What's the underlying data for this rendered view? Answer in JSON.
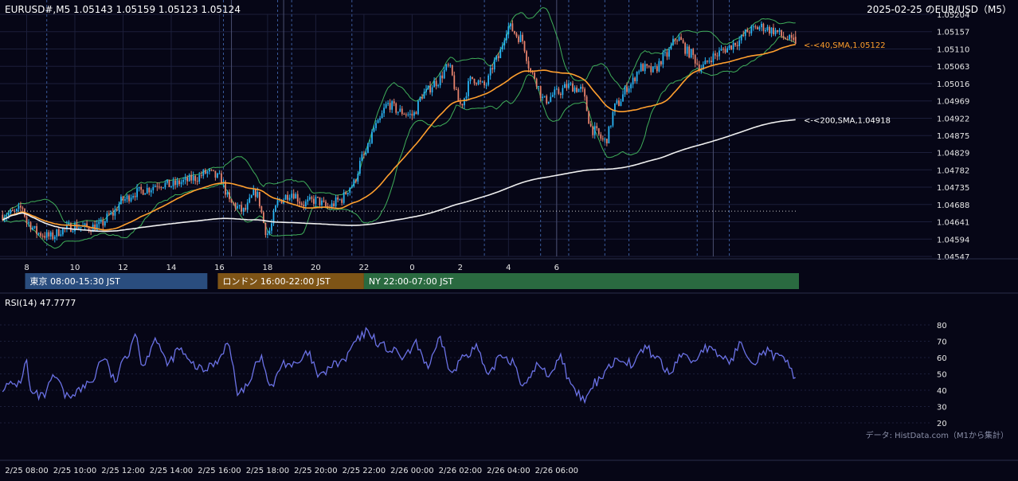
{
  "header": {
    "symbol_ohlc": "EURUSD#,M5 1.05143 1.05159 1.05123 1.05124",
    "date_title": "2025-02-25 のEUR/USD（M5）"
  },
  "footer": {
    "source": "データ: HistData.com（M1から集計）"
  },
  "colors": {
    "background": "#060616",
    "grid": "#1c1f3a",
    "bull_candle": "#29b6f6",
    "bear_candle": "#e8836d",
    "sma40": "#ff9f2e",
    "sma200": "#f0f0f0",
    "bollinger": "#3fae5a",
    "rsi_line": "#6b72e6",
    "tokyo_session": "#2a4d7e",
    "london_session": "#7e5416",
    "ny_session": "#2a6a40"
  },
  "chart_data": [
    {
      "type": "candlestick",
      "name": "price",
      "timeframe": "M5",
      "x_tick_labels": [
        "8",
        "10",
        "12",
        "14",
        "16",
        "18",
        "20",
        "22",
        "0",
        "2",
        "4",
        "6"
      ],
      "y_tick_labels": [
        "1.05204",
        "1.05157",
        "1.05110",
        "1.05063",
        "1.05016",
        "1.04969",
        "1.04922",
        "1.04875",
        "1.04829",
        "1.04782",
        "1.04735",
        "1.04688",
        "1.04641",
        "1.04594",
        "1.04547"
      ],
      "ylim": [
        1.04547,
        1.05204
      ],
      "anchors": [
        [
          0,
          1.0466
        ],
        [
          6,
          1.04665
        ],
        [
          10,
          1.0468
        ],
        [
          12,
          1.0464
        ],
        [
          18,
          1.0461
        ],
        [
          24,
          1.046
        ],
        [
          30,
          1.0462
        ],
        [
          36,
          1.0463
        ],
        [
          42,
          1.04625
        ],
        [
          48,
          1.0463
        ],
        [
          54,
          1.0466
        ],
        [
          60,
          1.047
        ],
        [
          66,
          1.0472
        ],
        [
          72,
          1.0473
        ],
        [
          78,
          1.04745
        ],
        [
          84,
          1.0474
        ],
        [
          90,
          1.0475
        ],
        [
          96,
          1.0476
        ],
        [
          102,
          1.04775
        ],
        [
          108,
          1.0476
        ],
        [
          114,
          1.0469
        ],
        [
          120,
          1.0467
        ],
        [
          126,
          1.0472
        ],
        [
          132,
          1.0461
        ],
        [
          138,
          1.047
        ],
        [
          144,
          1.0472
        ],
        [
          150,
          1.0469
        ],
        [
          156,
          1.047
        ],
        [
          162,
          1.0468
        ],
        [
          168,
          1.047
        ],
        [
          174,
          1.0474
        ],
        [
          180,
          1.0482
        ],
        [
          186,
          1.049
        ],
        [
          192,
          1.0496
        ],
        [
          198,
          1.0494
        ],
        [
          204,
          1.0493
        ],
        [
          210,
          1.0499
        ],
        [
          216,
          1.0502
        ],
        [
          222,
          1.0506
        ],
        [
          228,
          1.0496
        ],
        [
          234,
          1.0503
        ],
        [
          240,
          1.0501
        ],
        [
          246,
          1.0508
        ],
        [
          252,
          1.0517
        ],
        [
          258,
          1.0514
        ],
        [
          264,
          1.0504
        ],
        [
          270,
          1.0497
        ],
        [
          276,
          1.0499
        ],
        [
          282,
          1.0501
        ],
        [
          288,
          1.05
        ],
        [
          294,
          1.0489
        ],
        [
          300,
          1.0486
        ],
        [
          306,
          1.0496
        ],
        [
          312,
          1.0501
        ],
        [
          318,
          1.0506
        ],
        [
          324,
          1.0505
        ],
        [
          330,
          1.0509
        ],
        [
          336,
          1.0514
        ],
        [
          342,
          1.051
        ],
        [
          348,
          1.0506
        ],
        [
          354,
          1.0509
        ],
        [
          360,
          1.0511
        ],
        [
          366,
          1.0513
        ],
        [
          372,
          1.0516
        ],
        [
          378,
          1.0517
        ],
        [
          384,
          1.0516
        ],
        [
          390,
          1.0514
        ],
        [
          395,
          1.05124
        ]
      ],
      "candle_count": 396,
      "last": {
        "open": 1.05143,
        "high": 1.05159,
        "low": 1.05123,
        "close": 1.05124
      },
      "overlays": [
        {
          "name": "SMA 40",
          "label": "<-<40,SMA,1.05122",
          "value": 1.05122,
          "color": "#ff9f2e"
        },
        {
          "name": "SMA 200",
          "label": "<-<200,SMA,1.04918",
          "value": 1.04918,
          "color": "#f0f0f0"
        },
        {
          "name": "Bollinger Bands",
          "color": "#3fae5a"
        }
      ],
      "reference_line": 1.0467,
      "sessions": [
        {
          "name": "東京 08:00-15:30 JST",
          "color": "#2a4d7e"
        },
        {
          "name": "ロンドン 16:00-22:00 JST",
          "color": "#7e5416"
        },
        {
          "name": "NY 22:00-07:00 JST",
          "color": "#2a6a40"
        }
      ]
    },
    {
      "type": "line",
      "name": "RSI",
      "label": "RSI(14) 47.7777",
      "value": 47.7777,
      "y_tick_labels": [
        "80",
        "70",
        "60",
        "50",
        "40",
        "30",
        "20"
      ],
      "ylim": [
        20,
        80
      ],
      "anchors": [
        [
          0,
          42
        ],
        [
          8,
          44
        ],
        [
          12,
          57
        ],
        [
          14,
          38
        ],
        [
          20,
          36
        ],
        [
          26,
          48
        ],
        [
          32,
          36
        ],
        [
          38,
          40
        ],
        [
          44,
          45
        ],
        [
          50,
          60
        ],
        [
          56,
          46
        ],
        [
          62,
          62
        ],
        [
          66,
          75
        ],
        [
          70,
          55
        ],
        [
          76,
          72
        ],
        [
          82,
          56
        ],
        [
          88,
          65
        ],
        [
          94,
          56
        ],
        [
          100,
          52
        ],
        [
          106,
          57
        ],
        [
          112,
          68
        ],
        [
          118,
          37
        ],
        [
          122,
          45
        ],
        [
          128,
          60
        ],
        [
          134,
          42
        ],
        [
          140,
          57
        ],
        [
          146,
          55
        ],
        [
          152,
          62
        ],
        [
          158,
          48
        ],
        [
          164,
          55
        ],
        [
          170,
          58
        ],
        [
          176,
          70
        ],
        [
          182,
          76
        ],
        [
          188,
          68
        ],
        [
          194,
          64
        ],
        [
          200,
          60
        ],
        [
          206,
          68
        ],
        [
          212,
          55
        ],
        [
          218,
          70
        ],
        [
          224,
          50
        ],
        [
          230,
          62
        ],
        [
          236,
          66
        ],
        [
          242,
          48
        ],
        [
          248,
          62
        ],
        [
          254,
          58
        ],
        [
          260,
          42
        ],
        [
          266,
          55
        ],
        [
          272,
          50
        ],
        [
          278,
          60
        ],
        [
          284,
          40
        ],
        [
          290,
          34
        ],
        [
          296,
          45
        ],
        [
          302,
          55
        ],
        [
          308,
          60
        ],
        [
          314,
          56
        ],
        [
          320,
          66
        ],
        [
          326,
          60
        ],
        [
          332,
          50
        ],
        [
          338,
          62
        ],
        [
          344,
          58
        ],
        [
          350,
          66
        ],
        [
          356,
          62
        ],
        [
          362,
          58
        ],
        [
          368,
          68
        ],
        [
          374,
          58
        ],
        [
          380,
          64
        ],
        [
          386,
          60
        ],
        [
          392,
          56
        ],
        [
          395,
          48
        ]
      ],
      "x_tick_labels": [
        "2/25 08:00",
        "2/25 10:00",
        "2/25 12:00",
        "2/25 14:00",
        "2/25 16:00",
        "2/25 18:00",
        "2/25 20:00",
        "2/25 22:00",
        "2/26 00:00",
        "2/26 02:00",
        "2/26 04:00",
        "2/26 06:00"
      ]
    }
  ]
}
